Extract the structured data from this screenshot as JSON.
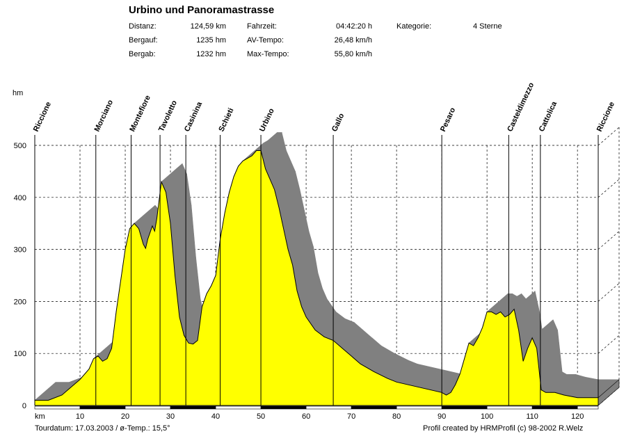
{
  "header": {
    "title": "Urbino und Panoramastrasse",
    "distanz_label": "Distanz:",
    "distanz_value": "124,59 km",
    "bergauf_label": "Bergauf:",
    "bergauf_value": "1235 hm",
    "bergab_label": "Bergab:",
    "bergab_value": "1232 hm",
    "fahrzeit_label": "Fahrzeit:",
    "fahrzeit_value": "04:42:20 h",
    "avtempo_label": "AV-Tempo:",
    "avtempo_value": "26,48 km/h",
    "maxtempo_label": "Max-Tempo:",
    "maxtempo_value": "55,80 km/h",
    "kategorie_label": "Kategorie:",
    "kategorie_value": "4 Sterne"
  },
  "footer": {
    "tourdatum": "Tourdatum: 17.03.2003  /  ø-Temp.: 15,5°",
    "credit": "Profil created by HRMProfil (c) 98-2002 R.Welz"
  },
  "colors": {
    "fill": "#ffff00",
    "shadow": "#808080",
    "background": "#ffffff"
  },
  "chart_data": {
    "type": "area",
    "xlabel": "km",
    "ylabel": "hm",
    "xlim": [
      0,
      124.59
    ],
    "ylim": [
      0,
      500
    ],
    "x_ticks": [
      10,
      20,
      30,
      40,
      50,
      60,
      70,
      80,
      90,
      100,
      110,
      120
    ],
    "y_ticks": [
      0,
      100,
      200,
      300,
      400,
      500
    ],
    "grid": true,
    "series": [
      {
        "x": [
          0,
          3,
          6,
          8,
          10,
          12,
          13,
          14,
          15,
          16,
          17,
          18,
          19,
          20,
          21,
          22,
          23,
          24,
          24.5,
          25,
          26,
          26.5,
          27,
          28,
          29,
          30,
          31,
          32,
          33,
          34,
          35,
          36,
          37,
          38,
          39,
          40,
          41,
          42,
          43,
          44,
          45,
          46,
          47,
          48,
          49,
          50,
          51,
          52,
          53,
          54,
          55,
          56,
          57,
          58,
          59,
          60,
          62,
          64,
          66,
          68,
          70,
          72,
          75,
          78,
          80,
          85,
          90,
          91,
          92,
          93,
          94,
          95,
          96,
          97,
          98,
          99,
          100,
          101,
          102,
          103,
          104,
          105,
          106,
          107,
          108,
          109,
          110,
          111,
          112,
          113,
          115,
          117,
          120,
          124.59
        ],
        "y": [
          10,
          10,
          20,
          35,
          50,
          70,
          90,
          95,
          85,
          90,
          110,
          180,
          240,
          300,
          340,
          350,
          340,
          310,
          302,
          320,
          345,
          335,
          360,
          430,
          410,
          350,
          250,
          170,
          135,
          120,
          118,
          125,
          190,
          215,
          230,
          250,
          320,
          370,
          410,
          440,
          460,
          470,
          475,
          480,
          490,
          490,
          455,
          435,
          415,
          380,
          340,
          300,
          270,
          220,
          190,
          170,
          145,
          132,
          125,
          110,
          95,
          80,
          65,
          52,
          45,
          35,
          25,
          20,
          25,
          40,
          60,
          90,
          120,
          115,
          130,
          150,
          180,
          180,
          175,
          180,
          170,
          175,
          185,
          145,
          85,
          110,
          130,
          110,
          30,
          25,
          25,
          20,
          15,
          15
        ]
      }
    ],
    "annotations": [
      {
        "label": "Riccione",
        "km": 0
      },
      {
        "label": "Morciano",
        "km": 13.5
      },
      {
        "label": "Montefiore",
        "km": 21.3
      },
      {
        "label": "Tavoletto",
        "km": 27.7
      },
      {
        "label": "Casinina",
        "km": 33.4
      },
      {
        "label": "Schieti",
        "km": 41
      },
      {
        "label": "Urbino",
        "km": 50
      },
      {
        "label": "Gallo",
        "km": 66
      },
      {
        "label": "Pesaro",
        "km": 90
      },
      {
        "label": "Casteldimezzo",
        "km": 104.8
      },
      {
        "label": "Cattolica",
        "km": 111.8
      },
      {
        "label": "Riccione",
        "km": 124.59
      }
    ]
  }
}
